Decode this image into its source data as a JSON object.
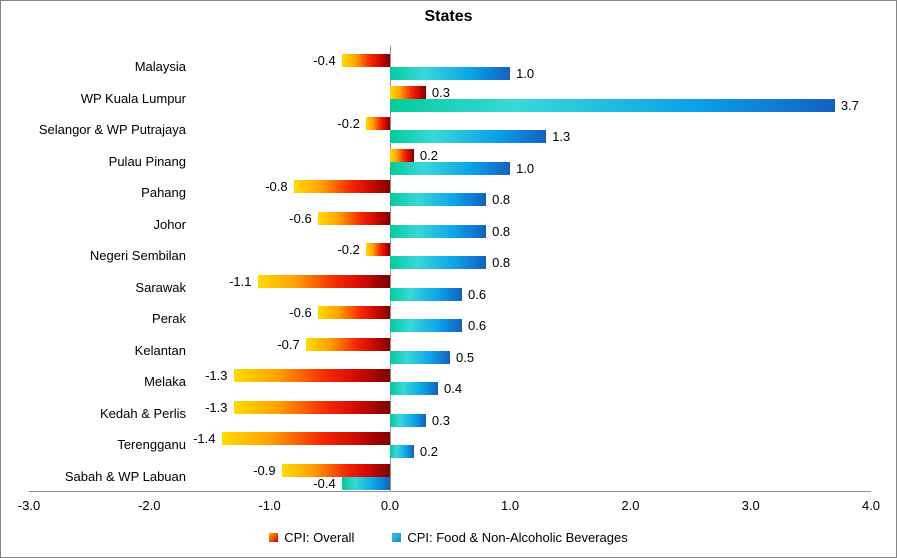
{
  "title": "States",
  "legend": {
    "items": [
      {
        "label": "CPI: Overall",
        "series": "overall"
      },
      {
        "label": "CPI: Food & Non-Alcoholic Beverages",
        "series": "food"
      }
    ],
    "position": "bottom"
  },
  "colors": {
    "overall_gradient": [
      "#FFDB00",
      "#FFA300",
      "#F52500",
      "#7D0000"
    ],
    "food_gradient": [
      "#04CB9B",
      "#38D8D8",
      "#0BA2E8",
      "#1261BE"
    ],
    "axis_line": "#969696",
    "text": "#000000",
    "background": "#FFFFFF"
  },
  "chart_data": {
    "type": "bar",
    "orientation": "horizontal",
    "title": "States",
    "categories": [
      "Malaysia",
      "WP Kuala Lumpur",
      "Selangor & WP Putrajaya",
      "Pulau Pinang",
      "Pahang",
      "Johor",
      "Negeri Sembilan",
      "Sarawak",
      "Perak",
      "Kelantan",
      "Melaka",
      "Kedah & Perlis",
      "Terengganu",
      "Sabah & WP Labuan"
    ],
    "series": [
      {
        "name": "CPI: Overall",
        "values": [
          -0.4,
          0.3,
          -0.2,
          0.2,
          -0.8,
          -0.6,
          -0.2,
          -1.1,
          -0.6,
          -0.7,
          -1.3,
          -1.3,
          -1.4,
          -0.9
        ]
      },
      {
        "name": "CPI: Food & Non-Alcoholic Beverages",
        "values": [
          1.0,
          3.7,
          1.3,
          1.0,
          0.8,
          0.8,
          0.8,
          0.6,
          0.6,
          0.5,
          0.4,
          0.3,
          0.2,
          -0.4
        ]
      }
    ],
    "xlim": [
      -3.0,
      4.0
    ],
    "x_ticks": [
      "-3.0",
      "-2.0",
      "-1.0",
      "0.0",
      "1.0",
      "2.0",
      "3.0",
      "4.0"
    ],
    "grid": false,
    "value_labels": true,
    "legend_position": "bottom"
  }
}
